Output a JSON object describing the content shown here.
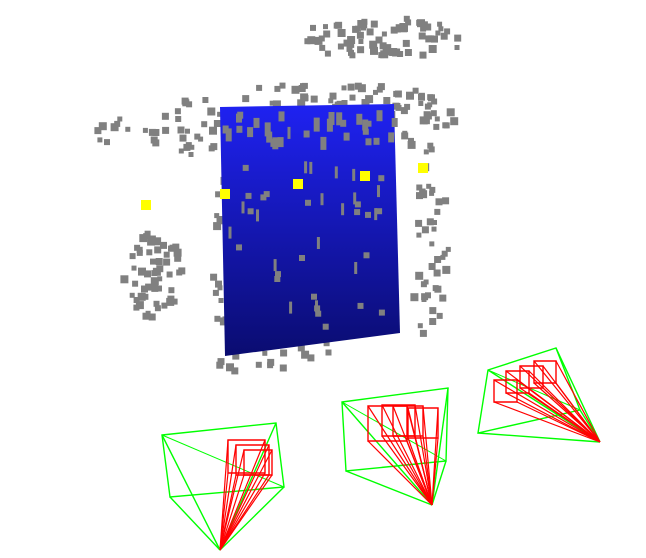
{
  "scene": {
    "colors": {
      "background": "#ffffff",
      "plane_top": "#1f22f2",
      "plane_bottom": "#0a0c70",
      "points": "#808080",
      "features": "#ffff00",
      "camera_frustum": "#00ff00",
      "camera_trajectory": "#ff0000"
    },
    "plane": {
      "name": "reconstructed-plane"
    },
    "point_cloud": {
      "name": "sparse-point-cloud"
    },
    "feature_points": {
      "count": 5
    },
    "cameras": [
      {
        "name": "camera-rig-left",
        "trajectory_poses": 3
      },
      {
        "name": "camera-rig-center",
        "trajectory_poses": 4
      },
      {
        "name": "camera-rig-right",
        "trajectory_poses": 4
      }
    ]
  }
}
